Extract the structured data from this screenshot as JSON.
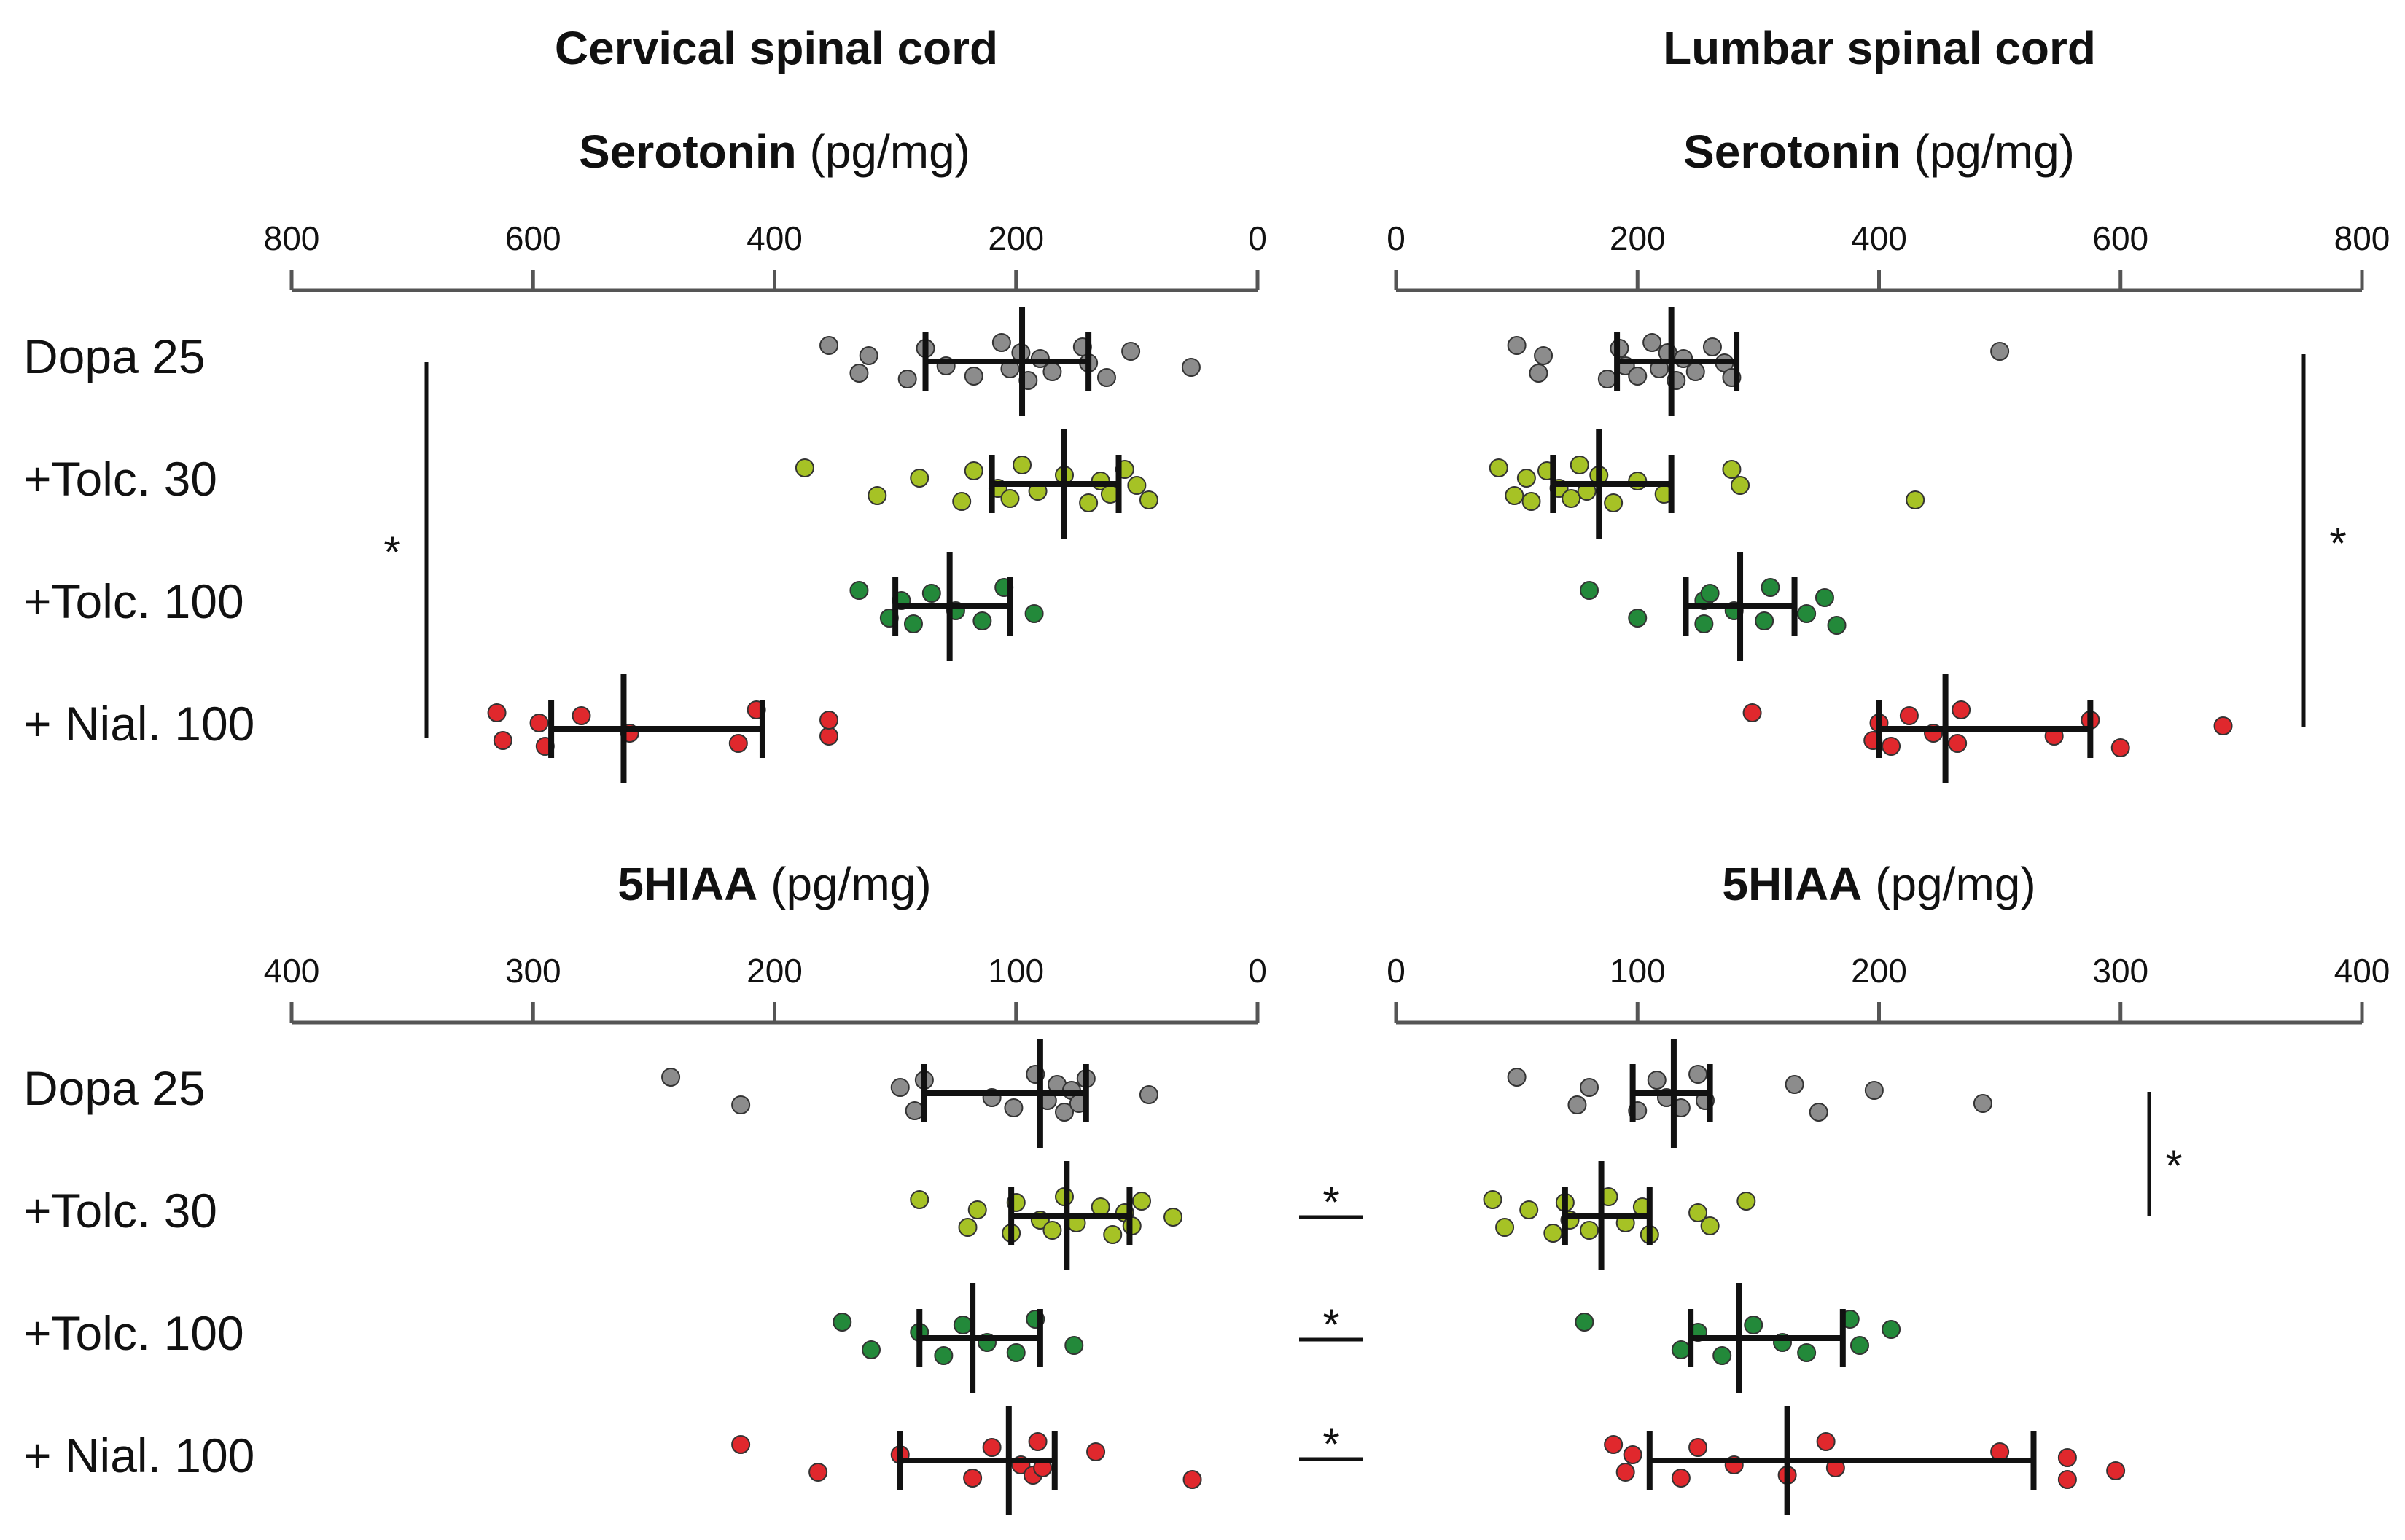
{
  "column_titles": [
    "Cervical spinal cord",
    "Lumbar spinal cord"
  ],
  "row_labels": [
    "Dopa 25",
    "+Tolc. 30",
    "+Tolc. 100",
    "+ Nial. 100"
  ],
  "panel_unit": "(pg/mg)",
  "significance_symbol": "*",
  "colors": {
    "Dopa 25": "#8c8c8c",
    "+Tolc. 30": "#a6c225",
    "+Tolc. 100": "#23893a",
    "+ Nial. 100": "#e0282d",
    "axis": "#555555",
    "bar": "#111111"
  },
  "chart_data": [
    {
      "type": "scatter",
      "id": "cervical_serotonin",
      "title": "Serotonin",
      "unit": "(pg/mg)",
      "xlim": [
        800,
        0
      ],
      "reversed": true,
      "ticks": [
        800,
        600,
        400,
        200,
        0
      ],
      "groups": [
        {
          "name": "Dopa 25",
          "mean": 195,
          "sem": [
            140,
            275
          ],
          "points": [
            355,
            330,
            322,
            290,
            275,
            258,
            235,
            212,
            205,
            196,
            190,
            180,
            170,
            145,
            140,
            125,
            105,
            55
          ]
        },
        {
          "name": "+Tolc. 30",
          "mean": 160,
          "sem": [
            115,
            220
          ],
          "points": [
            375,
            315,
            280,
            245,
            235,
            215,
            205,
            195,
            182,
            160,
            140,
            130,
            122,
            110,
            100,
            90
          ]
        },
        {
          "name": "+Tolc. 100",
          "mean": 255,
          "sem": [
            205,
            300
          ],
          "points": [
            330,
            305,
            295,
            285,
            270,
            250,
            228,
            210,
            185
          ]
        },
        {
          "name": "+ Nial. 100",
          "mean": 525,
          "sem": [
            410,
            585
          ],
          "points": [
            630,
            625,
            595,
            590,
            560,
            520,
            430,
            415,
            355,
            355
          ]
        }
      ]
    },
    {
      "type": "scatter",
      "id": "lumbar_serotonin",
      "title": "Serotonin",
      "unit": "(pg/mg)",
      "xlim": [
        0,
        800
      ],
      "reversed": false,
      "ticks": [
        0,
        200,
        400,
        600,
        800
      ],
      "groups": [
        {
          "name": "Dopa 25",
          "mean": 228,
          "sem": [
            183,
            282
          ],
          "points": [
            100,
            118,
            122,
            175,
            185,
            190,
            200,
            212,
            218,
            225,
            232,
            238,
            248,
            262,
            272,
            278,
            500
          ]
        },
        {
          "name": "+Tolc. 30",
          "mean": 168,
          "sem": [
            130,
            228
          ],
          "points": [
            85,
            98,
            108,
            112,
            125,
            135,
            145,
            152,
            158,
            168,
            180,
            200,
            222,
            278,
            285,
            430
          ]
        },
        {
          "name": "+Tolc. 100",
          "mean": 285,
          "sem": [
            240,
            330
          ],
          "points": [
            160,
            200,
            255,
            255,
            260,
            280,
            305,
            310,
            340,
            355,
            365
          ]
        },
        {
          "name": "+ Nial. 100",
          "mean": 455,
          "sem": [
            400,
            575
          ],
          "points": [
            295,
            395,
            400,
            410,
            425,
            445,
            465,
            468,
            545,
            575,
            600,
            685
          ]
        }
      ]
    },
    {
      "type": "scatter",
      "id": "cervical_5hiaa",
      "title": "5HIAA",
      "unit": "(pg/mg)",
      "xlim": [
        400,
        0
      ],
      "reversed": true,
      "ticks": [
        400,
        300,
        200,
        100,
        0
      ],
      "groups": [
        {
          "name": "Dopa 25",
          "mean": 90,
          "sem": [
            71,
            138
          ],
          "points": [
            243,
            214,
            148,
            142,
            138,
            110,
            101,
            92,
            87,
            83,
            80,
            77,
            74,
            71,
            45
          ]
        },
        {
          "name": "+Tolc. 30",
          "mean": 79,
          "sem": [
            53,
            102
          ],
          "points": [
            140,
            120,
            116,
            102,
            100,
            90,
            85,
            80,
            75,
            65,
            60,
            55,
            52,
            48,
            35
          ]
        },
        {
          "name": "+Tolc. 100",
          "mean": 118,
          "sem": [
            90,
            140
          ],
          "points": [
            172,
            160,
            140,
            130,
            122,
            112,
            100,
            92,
            76
          ]
        },
        {
          "name": "+ Nial. 100",
          "mean": 103,
          "sem": [
            84,
            148
          ],
          "points": [
            214,
            182,
            148,
            118,
            110,
            98,
            93,
            91,
            89,
            67,
            27
          ]
        }
      ]
    },
    {
      "type": "scatter",
      "id": "lumbar_5hiaa",
      "title": "5HIAA",
      "unit": "(pg/mg)",
      "xlim": [
        0,
        400
      ],
      "reversed": false,
      "ticks": [
        0,
        100,
        200,
        300,
        400
      ],
      "groups": [
        {
          "name": "Dopa 25",
          "mean": 115,
          "sem": [
            98,
            130
          ],
          "points": [
            50,
            75,
            80,
            100,
            108,
            112,
            118,
            125,
            128,
            165,
            175,
            198,
            243
          ]
        },
        {
          "name": "+Tolc. 30",
          "mean": 85,
          "sem": [
            70,
            105
          ],
          "points": [
            40,
            45,
            55,
            65,
            70,
            72,
            80,
            88,
            95,
            102,
            105,
            125,
            130,
            145
          ]
        },
        {
          "name": "+Tolc. 100",
          "mean": 142,
          "sem": [
            122,
            185
          ],
          "points": [
            78,
            118,
            125,
            135,
            148,
            160,
            170,
            188,
            192,
            205
          ]
        },
        {
          "name": "+ Nial. 100",
          "mean": 162,
          "sem": [
            105,
            264
          ],
          "points": [
            90,
            95,
            98,
            118,
            125,
            140,
            162,
            178,
            182,
            250,
            278,
            278,
            298
          ]
        }
      ]
    }
  ]
}
